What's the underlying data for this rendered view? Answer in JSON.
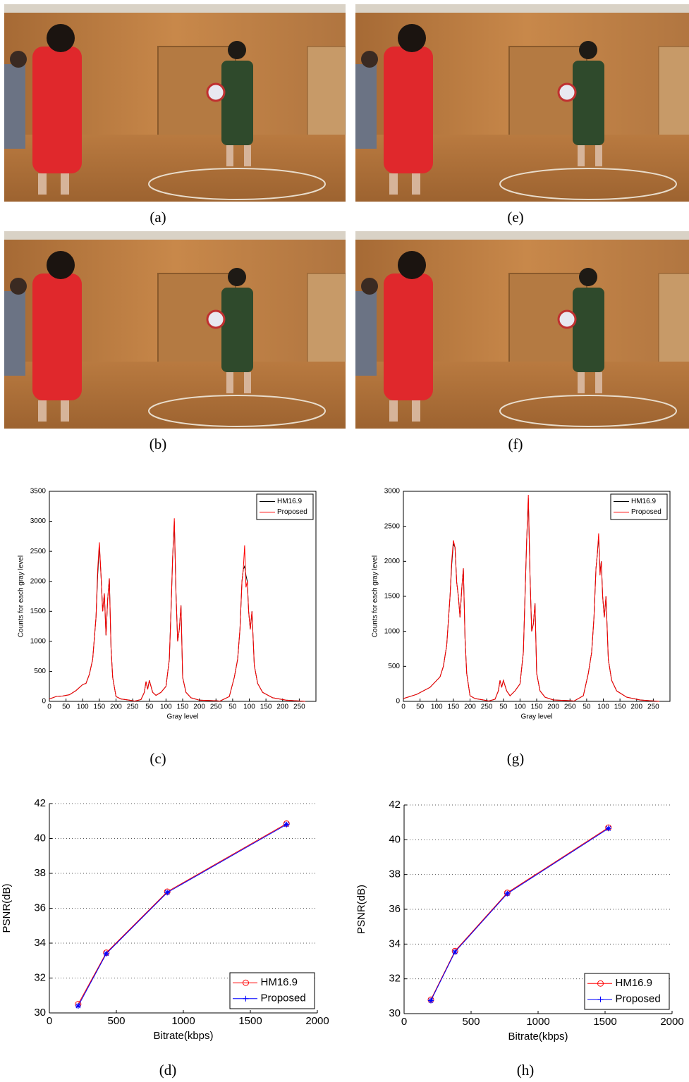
{
  "captions": [
    "(a)",
    "(b)",
    "(c)",
    "(d)",
    "(e)",
    "(f)",
    "(g)",
    "(h)"
  ],
  "chart_data": [
    {
      "type": "line",
      "xlabel": "Gray level",
      "ylabel": "Counts for each gray level",
      "legend": "upper right",
      "grid": false,
      "xlim": [
        0,
        800
      ],
      "ylim": [
        0,
        3500
      ],
      "xticks": [
        0,
        50,
        100,
        150,
        200,
        250,
        {
          "value": 300,
          "label": "50"
        },
        {
          "value": 350,
          "label": "100"
        },
        {
          "value": 400,
          "label": "150"
        },
        {
          "value": 450,
          "label": "200"
        },
        {
          "value": 500,
          "label": "250"
        },
        {
          "value": 550,
          "label": "50"
        },
        {
          "value": 600,
          "label": "100"
        },
        {
          "value": 650,
          "label": "150"
        },
        {
          "value": 700,
          "label": "200"
        },
        {
          "value": 750,
          "label": "250"
        }
      ],
      "yticks": [
        0,
        500,
        1000,
        1500,
        2000,
        2500,
        3000,
        3500
      ],
      "x": [
        0,
        20,
        40,
        60,
        80,
        100,
        110,
        120,
        130,
        140,
        145,
        150,
        155,
        160,
        165,
        170,
        175,
        180,
        185,
        190,
        200,
        215,
        240,
        256,
        275,
        285,
        290,
        295,
        300,
        310,
        320,
        335,
        350,
        360,
        365,
        370,
        375,
        380,
        385,
        390,
        395,
        400,
        410,
        425,
        450,
        500,
        512,
        540,
        555,
        565,
        572,
        578,
        582,
        586,
        590,
        594,
        598,
        603,
        608,
        615,
        625,
        640,
        670,
        710,
        768
      ],
      "series": [
        {
          "name": "HM16.9",
          "color": "#000000",
          "values": [
            40,
            80,
            90,
            110,
            180,
            280,
            300,
            450,
            700,
            1400,
            2100,
            2600,
            2100,
            1500,
            1800,
            1100,
            1700,
            2050,
            900,
            400,
            80,
            40,
            20,
            5,
            30,
            150,
            330,
            200,
            350,
            150,
            100,
            150,
            250,
            700,
            1500,
            2400,
            3000,
            1800,
            1000,
            1200,
            1600,
            400,
            150,
            60,
            20,
            10,
            5,
            80,
            400,
            700,
            1200,
            2000,
            2200,
            2250,
            2100,
            2000,
            1500,
            1200,
            1500,
            600,
            300,
            150,
            60,
            20,
            0
          ]
        },
        {
          "name": "Proposed",
          "color": "#ff0000",
          "values": [
            40,
            80,
            90,
            110,
            180,
            280,
            300,
            450,
            700,
            1400,
            2200,
            2650,
            2100,
            1500,
            1800,
            1100,
            1700,
            2050,
            900,
            400,
            80,
            40,
            20,
            5,
            30,
            150,
            330,
            200,
            350,
            150,
            100,
            150,
            250,
            700,
            1500,
            2400,
            3050,
            1800,
            1000,
            1200,
            1600,
            400,
            150,
            60,
            20,
            10,
            5,
            80,
            400,
            700,
            1200,
            2000,
            2200,
            2600,
            1900,
            2000,
            1500,
            1200,
            1500,
            600,
            300,
            150,
            60,
            20,
            0
          ]
        }
      ]
    },
    {
      "type": "line",
      "xlabel": "Gray level",
      "ylabel": "Counts for each gray level",
      "legend": "upper right",
      "grid": false,
      "xlim": [
        0,
        800
      ],
      "ylim": [
        0,
        3000
      ],
      "xticks": [
        0,
        50,
        100,
        150,
        200,
        250,
        {
          "value": 300,
          "label": "50"
        },
        {
          "value": 350,
          "label": "100"
        },
        {
          "value": 400,
          "label": "150"
        },
        {
          "value": 450,
          "label": "200"
        },
        {
          "value": 500,
          "label": "250"
        },
        {
          "value": 550,
          "label": "50"
        },
        {
          "value": 600,
          "label": "100"
        },
        {
          "value": 650,
          "label": "150"
        },
        {
          "value": 700,
          "label": "200"
        },
        {
          "value": 750,
          "label": "250"
        }
      ],
      "yticks": [
        0,
        500,
        1000,
        1500,
        2000,
        2500,
        3000
      ],
      "x": [
        0,
        20,
        40,
        60,
        80,
        100,
        110,
        120,
        130,
        140,
        145,
        150,
        155,
        160,
        165,
        170,
        175,
        180,
        185,
        190,
        200,
        215,
        240,
        256,
        275,
        285,
        290,
        295,
        300,
        310,
        320,
        335,
        350,
        360,
        365,
        370,
        375,
        380,
        385,
        390,
        395,
        400,
        410,
        425,
        450,
        500,
        512,
        540,
        555,
        565,
        572,
        578,
        582,
        586,
        590,
        594,
        598,
        603,
        608,
        615,
        625,
        640,
        670,
        710,
        768
      ],
      "series": [
        {
          "name": "HM16.9",
          "color": "#000000",
          "values": [
            40,
            70,
            100,
            150,
            200,
            300,
            350,
            500,
            800,
            1500,
            1950,
            2250,
            2200,
            1700,
            1500,
            1200,
            1600,
            1900,
            900,
            400,
            80,
            40,
            20,
            5,
            30,
            150,
            300,
            200,
            300,
            150,
            80,
            150,
            250,
            700,
            1500,
            2300,
            2900,
            1800,
            1000,
            1100,
            1400,
            400,
            150,
            60,
            20,
            10,
            5,
            80,
            400,
            700,
            1200,
            1900,
            2100,
            2350,
            1850,
            2000,
            1500,
            1200,
            1500,
            600,
            300,
            150,
            60,
            20,
            0
          ]
        },
        {
          "name": "Proposed",
          "color": "#ff0000",
          "values": [
            40,
            70,
            100,
            150,
            200,
            300,
            350,
            500,
            800,
            1500,
            2000,
            2300,
            2200,
            1700,
            1500,
            1200,
            1600,
            1900,
            900,
            400,
            80,
            40,
            20,
            5,
            30,
            150,
            300,
            200,
            300,
            150,
            80,
            150,
            250,
            700,
            1500,
            2300,
            2950,
            1800,
            1000,
            1100,
            1400,
            400,
            150,
            60,
            20,
            10,
            5,
            80,
            400,
            700,
            1200,
            1900,
            2100,
            2400,
            1800,
            2000,
            1500,
            1200,
            1500,
            600,
            300,
            150,
            60,
            20,
            0
          ]
        }
      ]
    },
    {
      "type": "line",
      "xlabel": "Bitrate(kbps)",
      "ylabel": "PSNR(dB)",
      "legend": "lower right",
      "grid": true,
      "xlim": [
        0,
        2000
      ],
      "ylim": [
        30,
        42
      ],
      "xticks": [
        0,
        500,
        1000,
        1500,
        2000
      ],
      "yticks": [
        30,
        32,
        34,
        36,
        38,
        40,
        42
      ],
      "x": [
        215,
        425,
        880,
        1770
      ],
      "series": [
        {
          "name": "HM16.9",
          "color": "#ff0000",
          "marker": "o",
          "values": [
            30.5,
            33.45,
            36.95,
            40.85
          ]
        },
        {
          "name": "Proposed",
          "color": "#0000ff",
          "marker": "*",
          "values": [
            30.4,
            33.4,
            36.9,
            40.8
          ]
        }
      ]
    },
    {
      "type": "line",
      "xlabel": "Bitrate(kbps)",
      "ylabel": "PSNR(dB)",
      "legend": "lower right",
      "grid": true,
      "xlim": [
        0,
        2000
      ],
      "ylim": [
        30,
        42
      ],
      "xticks": [
        0,
        500,
        1000,
        1500,
        2000
      ],
      "yticks": [
        30,
        32,
        34,
        36,
        38,
        40,
        42
      ],
      "x": [
        200,
        380,
        770,
        1525
      ],
      "series": [
        {
          "name": "HM16.9",
          "color": "#ff0000",
          "marker": "o",
          "values": [
            30.8,
            33.6,
            36.95,
            40.7
          ]
        },
        {
          "name": "Proposed",
          "color": "#0000ff",
          "marker": "*",
          "values": [
            30.75,
            33.55,
            36.9,
            40.65
          ]
        }
      ]
    }
  ]
}
